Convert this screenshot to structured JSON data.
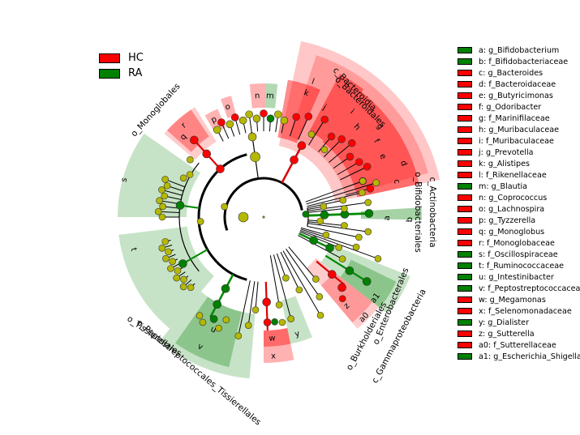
{
  "colors": {
    "HC": "#ff0000",
    "RA": "#008000",
    "node_neutral": "#b5b800"
  },
  "class_legend": [
    {
      "label": "HC",
      "group": "HC"
    },
    {
      "label": "RA",
      "group": "RA"
    }
  ],
  "taxa_legend": [
    {
      "label": "a: g_Bifidobacterium",
      "group": "RA"
    },
    {
      "label": "b: f_Bifidobacteriaceae",
      "group": "RA"
    },
    {
      "label": "c: g_Bacteroides",
      "group": "HC"
    },
    {
      "label": "d: f_Bacteroidaceae",
      "group": "HC"
    },
    {
      "label": "e: g_Butyricimonas",
      "group": "HC"
    },
    {
      "label": "f: g_Odoribacter",
      "group": "HC"
    },
    {
      "label": "g: f_Marinifilaceae",
      "group": "HC"
    },
    {
      "label": "h: g_Muribaculaceae",
      "group": "HC"
    },
    {
      "label": "i: f_Muribaculaceae",
      "group": "HC"
    },
    {
      "label": "j: g_Prevotella",
      "group": "HC"
    },
    {
      "label": "k: g_Alistipes",
      "group": "HC"
    },
    {
      "label": "l: f_Rikenellaceae",
      "group": "HC"
    },
    {
      "label": "m: g_Blautia",
      "group": "RA"
    },
    {
      "label": "n: g_Coprococcus",
      "group": "HC"
    },
    {
      "label": "o: g_Lachnospira",
      "group": "HC"
    },
    {
      "label": "p: g_Tyzzerella",
      "group": "HC"
    },
    {
      "label": "q: g_Monoglobus",
      "group": "HC"
    },
    {
      "label": "r: f_Monoglobaceae",
      "group": "HC"
    },
    {
      "label": "s: f_Oscillospiraceae",
      "group": "RA"
    },
    {
      "label": "t: f_Ruminococcaceae",
      "group": "RA"
    },
    {
      "label": "u: g_Intestinibacter",
      "group": "RA"
    },
    {
      "label": "v: f_Peptostreptococcaceae",
      "group": "RA"
    },
    {
      "label": "w: g_Megamonas",
      "group": "HC"
    },
    {
      "label": "x: f_Selenomonadaceae",
      "group": "HC"
    },
    {
      "label": "y: g_Dialister",
      "group": "RA"
    },
    {
      "label": "z: g_Sutterella",
      "group": "HC"
    },
    {
      "label": "a0: f_Sutterellaceae",
      "group": "HC"
    },
    {
      "label": "a1: g_Escherichia_Shigella",
      "group": "RA"
    }
  ],
  "clade_labels": [
    {
      "id": "c_bacteroidia",
      "text": "c_Bacteroidia"
    },
    {
      "id": "o_bacteroidales",
      "text": "o_Bacteroidales"
    },
    {
      "id": "o_monoglobales",
      "text": "o_Monoglobales"
    },
    {
      "id": "c_actinobacteria",
      "text": "c_Actinobacteria"
    },
    {
      "id": "o_bifidobacteriales",
      "text": "o_Bifidobacteriales"
    },
    {
      "id": "o_tissierellales",
      "text": "o_Tissierellales"
    },
    {
      "id": "o_peptostreptococcales",
      "text": "o_Peptostreptococcales_Tissierellales"
    },
    {
      "id": "o_enterobacterales",
      "text": "o_Enterobacterales"
    },
    {
      "id": "c_gammaproteobacteria",
      "text": "c_Gammaproteobacteria"
    },
    {
      "id": "o_burkholderiales",
      "text": "o_Burkholderiales"
    }
  ],
  "sector_letters": [
    "l",
    "k",
    "j",
    "i",
    "h",
    "g",
    "f",
    "e",
    "d",
    "c",
    "b",
    "a",
    "a1",
    "z",
    "a0",
    "y",
    "w",
    "x",
    "u",
    "v",
    "t",
    "s",
    "r",
    "q",
    "p",
    "o",
    "n",
    "m"
  ]
}
